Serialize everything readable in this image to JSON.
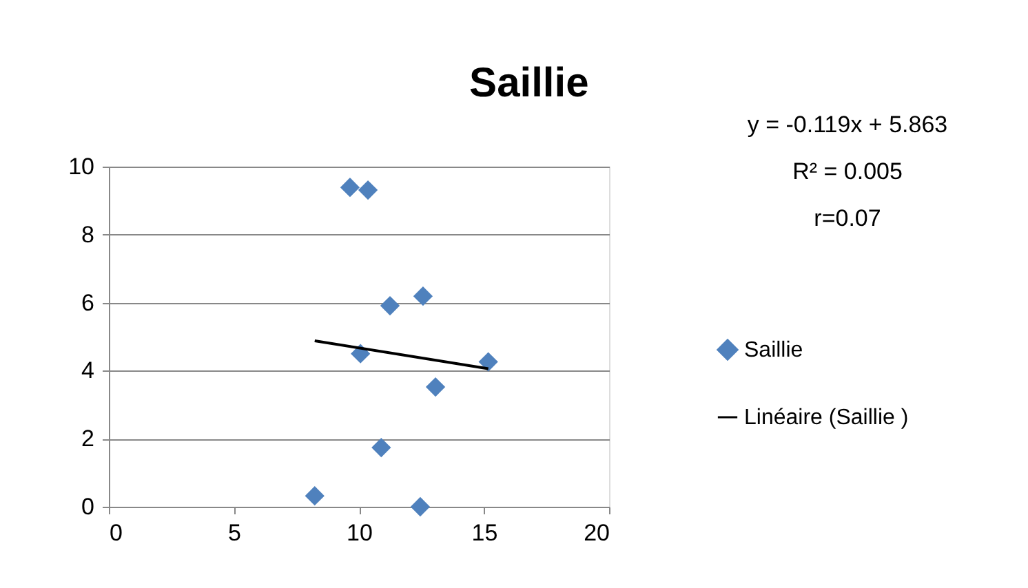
{
  "chart_data": {
    "type": "scatter",
    "title": "Saillie",
    "xlim": [
      0,
      20
    ],
    "xticks": [
      0,
      5,
      10,
      15,
      20
    ],
    "ylim": [
      0,
      10
    ],
    "yticks": [
      0,
      2,
      4,
      6,
      8,
      10
    ],
    "grid": "y",
    "legend": "right",
    "marker": "diamond",
    "series": [
      {
        "name": "Saillie",
        "color": "#4f81bd",
        "x": [
          9.64,
          10.36,
          11.24,
          12.56,
          10.06,
          15.17,
          13.06,
          10.89,
          8.23,
          12.45
        ],
        "values": [
          9.39,
          9.31,
          5.91,
          6.19,
          4.5,
          4.26,
          3.52,
          1.74,
          0.32,
          0.0
        ]
      },
      {
        "name": "Linéaire (Saillie )",
        "color": "#000000",
        "type": "line",
        "line_style": "solid",
        "marker": "none",
        "x": [
          8.23,
          15.17
        ],
        "values": [
          4.88,
          4.06
        ]
      }
    ],
    "annotations": [
      "y = -0.119x + 5.863",
      "R² = 0.005",
      "r=0.07"
    ]
  }
}
